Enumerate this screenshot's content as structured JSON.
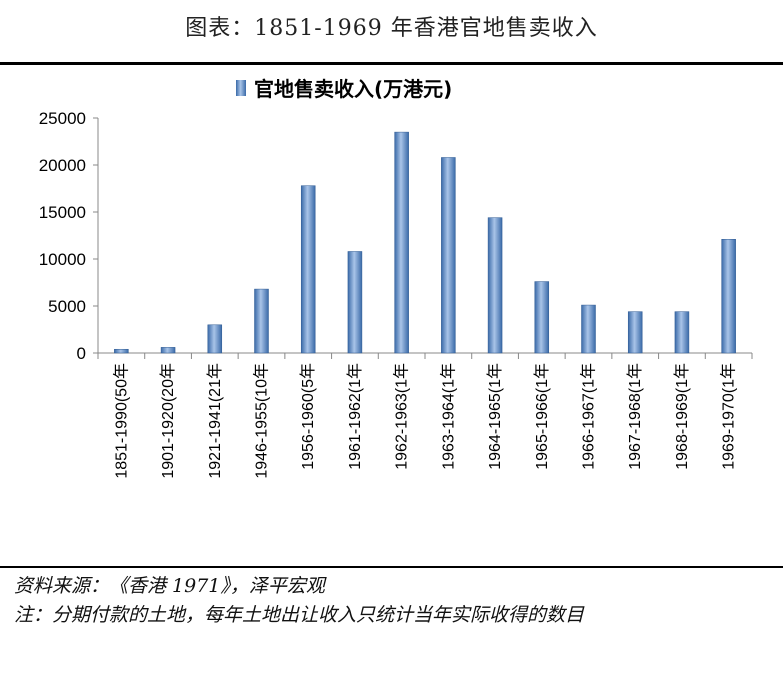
{
  "figure": {
    "title": "图表：1851-1969 年香港官地售卖收入"
  },
  "chart_data": {
    "type": "bar",
    "title": "",
    "legend": {
      "label": "官地售卖收入(万港元)",
      "position": "top"
    },
    "categories": [
      "1851-1990(50年",
      "1901-1920(20年",
      "1921-1941(21年",
      "1946-1955(10年",
      "1956-1960(5年",
      "1961-1962(1年",
      "1962-1963(1年",
      "1963-1964(1年",
      "1964-1965(1年",
      "1965-1966(1年",
      "1966-1967(1年",
      "1967-1968(1年",
      "1968-1969(1年",
      "1969-1970(1年"
    ],
    "series": [
      {
        "name": "官地售卖收入(万港元)",
        "values": [
          400,
          600,
          3000,
          6800,
          17800,
          10800,
          23500,
          20800,
          14400,
          7600,
          5100,
          4400,
          4400,
          12100
        ]
      }
    ],
    "ylim": [
      0,
      25000
    ],
    "yticks": [
      "0",
      "5000",
      "10000",
      "15000",
      "20000",
      "25000"
    ],
    "xlabel": "",
    "ylabel": "",
    "grid": false,
    "bar_color": "#4f81bd"
  },
  "notes": {
    "source": "资料来源：《香港 1971》，泽平宏观",
    "note": "注：分期付款的土地，每年土地出让收入只统计当年实际收得的数目"
  }
}
